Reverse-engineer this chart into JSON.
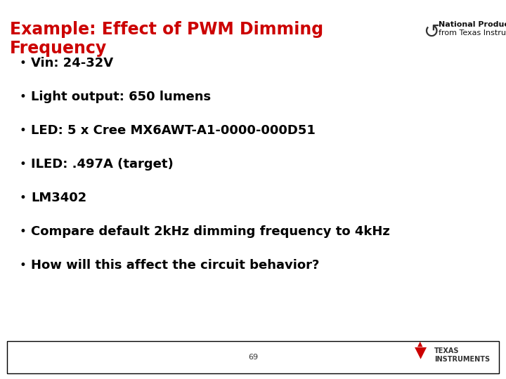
{
  "title_line1": "Example: Effect of PWM Dimming",
  "title_line2": "Frequency",
  "title_color": "#CC0000",
  "title_fontsize": 17,
  "bullet_points": [
    "Vin: 24-32V",
    "Light output: 650 lumens",
    "LED: 5 x Cree MX6AWT-A1-0000-000D51",
    "ILED: .497A (target)",
    "LM3402",
    "Compare default 2kHz dimming frequency to 4kHz",
    "How will this affect the circuit behavior?"
  ],
  "bullet_fontsize": 13,
  "bullet_color": "#000000",
  "logo_text_line1": "National Products",
  "logo_text_line2": "from Texas Instruments",
  "footer_number": "69",
  "background_color": "#FFFFFF",
  "footer_box_edge": "#000000"
}
